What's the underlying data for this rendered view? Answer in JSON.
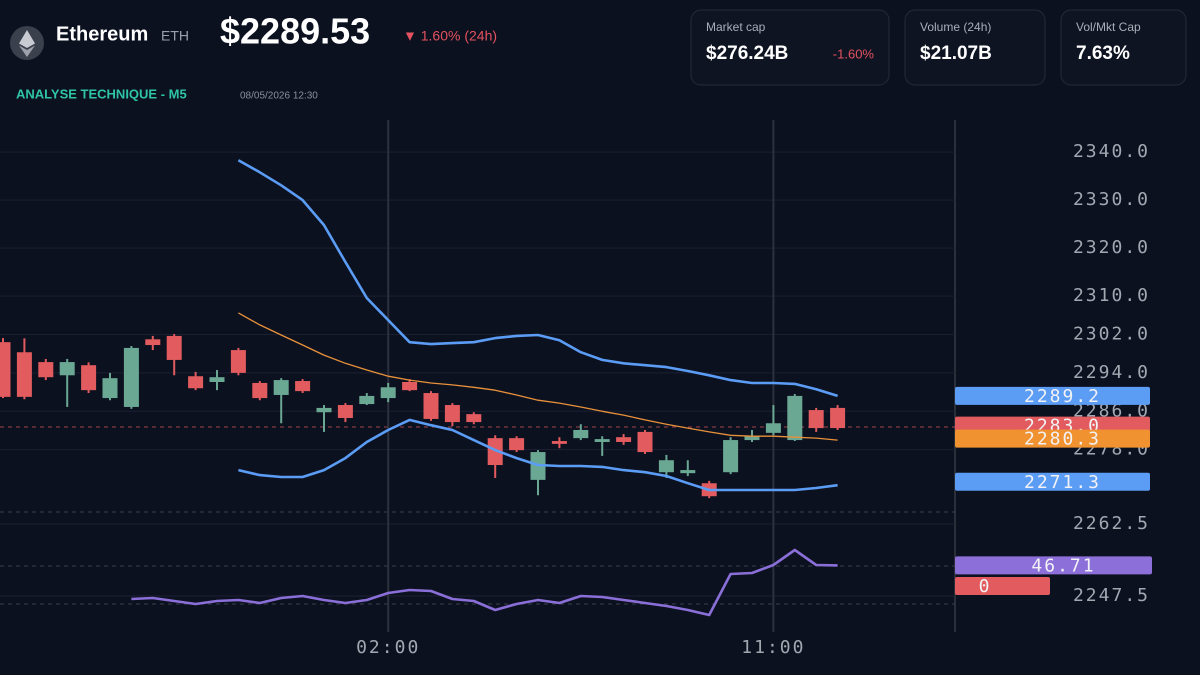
{
  "header": {
    "name": "Ethereum",
    "symbol": "ETH",
    "price": "$2289.53",
    "change": "▼ 1.60% (24h)",
    "section": "ANALYSE TECHNIQUE - M5",
    "timestamp": "08/05/2026 12:30"
  },
  "stats": [
    {
      "label": "Market cap",
      "value": "$276.24B",
      "change": "-1.60%"
    },
    {
      "label": "Volume (24h)",
      "value": "$21.07B"
    },
    {
      "label": "Vol/Mkt Cap",
      "value": "7.63%"
    }
  ],
  "chart_data": {
    "type": "candlestick",
    "categories": [
      null,
      null,
      null,
      null,
      null,
      null,
      null,
      null,
      null,
      null,
      null,
      null,
      null,
      null,
      null,
      null,
      null,
      null,
      "02:00",
      null,
      null,
      null,
      null,
      null,
      null,
      null,
      null,
      null,
      null,
      null,
      null,
      null,
      null,
      null,
      null,
      null,
      "11:00",
      null,
      null,
      null
    ],
    "open": [
      2300.4,
      2298.3,
      2296.25,
      2293.5,
      2295.6,
      2288.75,
      2286.9,
      2301.0,
      2301.7,
      2293.3,
      2292.1,
      2298.75,
      2291.9,
      2289.4,
      2292.3,
      2285.8,
      2287.3,
      2287.5,
      2288.75,
      2292.1,
      2289.8,
      2287.3,
      2285.4,
      2280.4,
      2280.4,
      2271.7,
      2279.8,
      2280.4,
      2279.6,
      2280.6,
      2281.7,
      2273.3,
      2273.1,
      2271.0,
      2273.3,
      2280.0,
      2281.5,
      2280.0,
      2286.25,
      2286.7
    ],
    "high": [
      2301.25,
      2301.2,
      2296.9,
      2296.9,
      2296.2,
      2294.0,
      2299.6,
      2301.7,
      2302.1,
      2294.2,
      2294.6,
      2299.2,
      2292.3,
      2292.9,
      2292.7,
      2287.3,
      2287.7,
      2289.8,
      2291.9,
      2292.7,
      2290.2,
      2287.7,
      2285.8,
      2281.0,
      2280.8,
      2277.9,
      2280.6,
      2283.3,
      2280.8,
      2281.25,
      2282.1,
      2276.9,
      2275.8,
      2271.5,
      2280.6,
      2282.1,
      2287.3,
      2289.6,
      2286.7,
      2287.3
    ],
    "low": [
      2288.75,
      2288.5,
      2292.5,
      2286.9,
      2289.8,
      2288.3,
      2286.5,
      2298.75,
      2293.5,
      2290.4,
      2290.4,
      2293.5,
      2288.3,
      2283.5,
      2289.8,
      2281.7,
      2283.75,
      2287.3,
      2287.9,
      2290.2,
      2284.0,
      2282.9,
      2283.3,
      2272.1,
      2277.5,
      2268.5,
      2278.3,
      2280.0,
      2276.7,
      2279.0,
      2277.1,
      2272.1,
      2272.5,
      2267.9,
      2272.9,
      2279.6,
      2281.0,
      2279.8,
      2281.7,
      2282.1
    ],
    "close": [
      2289.0,
      2289.0,
      2293.1,
      2296.25,
      2290.4,
      2292.9,
      2299.2,
      2299.8,
      2296.7,
      2290.8,
      2293.1,
      2294.0,
      2288.75,
      2292.5,
      2290.2,
      2286.7,
      2284.6,
      2289.2,
      2291.0,
      2290.4,
      2284.4,
      2283.75,
      2283.75,
      2274.8,
      2277.9,
      2277.5,
      2279.2,
      2282.1,
      2280.2,
      2279.6,
      2277.5,
      2275.8,
      2273.75,
      2268.3,
      2280.0,
      2280.8,
      2283.5,
      2289.2,
      2282.5,
      2282.5
    ],
    "up_color": "#6aa893",
    "down_color": "#e25b5e",
    "overlays": [
      {
        "color": "#5b9cf5",
        "values": [
          null,
          null,
          null,
          null,
          null,
          null,
          null,
          null,
          null,
          null,
          null,
          2338.3,
          2335.8,
          2333.1,
          2330.0,
          2324.8,
          2317.1,
          2309.6,
          2305.0,
          2300.4,
          2300.0,
          2300.2,
          2300.4,
          2301.25,
          2301.7,
          2301.9,
          2300.8,
          2298.3,
          2296.7,
          2296.0,
          2295.6,
          2295.2,
          2294.4,
          2293.5,
          2292.5,
          2291.9,
          2291.9,
          2291.7,
          2290.6,
          2289.2
        ]
      },
      {
        "color": "#e8913a",
        "values": [
          null,
          null,
          null,
          null,
          null,
          null,
          null,
          null,
          null,
          null,
          null,
          2306.5,
          2304.0,
          2301.9,
          2299.8,
          2297.7,
          2296.0,
          2294.6,
          2293.3,
          2292.5,
          2291.9,
          2291.5,
          2291.0,
          2290.4,
          2289.4,
          2288.3,
          2287.7,
          2286.9,
          2286.0,
          2285.2,
          2284.2,
          2283.3,
          2282.5,
          2281.7,
          2281.0,
          2280.8,
          2280.8,
          2280.6,
          2280.4,
          2280.0
        ]
      },
      {
        "color": "#5b9cf5",
        "values": [
          null,
          null,
          null,
          null,
          null,
          null,
          null,
          null,
          null,
          null,
          null,
          2273.75,
          2272.7,
          2272.3,
          2272.3,
          2273.75,
          2276.25,
          2279.6,
          2282.1,
          2284.2,
          2283.1,
          2282.1,
          2280.0,
          2277.9,
          2276.25,
          2274.8,
          2274.6,
          2274.6,
          2274.4,
          2273.75,
          2273.3,
          2272.5,
          2271.0,
          2269.6,
          2269.6,
          2269.6,
          2269.6,
          2269.6,
          2270.0,
          2270.6
        ]
      }
    ],
    "rsi": {
      "color": "#8b6fd8",
      "ylim": [
        25,
        55
      ],
      "values": [
        null,
        null,
        null,
        null,
        null,
        null,
        35.76,
        36.09,
        35.11,
        34.13,
        35.11,
        35.43,
        34.46,
        36.09,
        36.74,
        35.43,
        34.46,
        35.43,
        37.72,
        38.7,
        38.37,
        35.76,
        35.11,
        32.17,
        34.13,
        35.43,
        34.46,
        36.74,
        36.41,
        35.43,
        34.46,
        33.48,
        32.17,
        30.54,
        43.91,
        44.24,
        46.85,
        51.74,
        46.85,
        46.71
      ]
    },
    "ylim": [
      2240,
      2346.7
    ],
    "yticks": [
      {
        "value": 2340,
        "label": "2340.0"
      },
      {
        "value": 2330,
        "label": "2330.0"
      },
      {
        "value": 2320,
        "label": "2320.0"
      },
      {
        "value": 2310,
        "label": "2310.0"
      },
      {
        "value": 2302,
        "label": "2302.0"
      },
      {
        "value": 2294,
        "label": "2294.0"
      },
      {
        "value": 2286,
        "label": "2286.0"
      },
      {
        "value": 2278,
        "label": "2278.0"
      },
      {
        "value": 2262.5,
        "label": "2262.5"
      },
      {
        "value": 2247.5,
        "label": "2247.5"
      }
    ],
    "grid": true,
    "price_tags": [
      {
        "value": 2289.2,
        "color": "#5b9cf5"
      },
      {
        "value": 2283,
        "label": "2283.0",
        "color": "#e25b5e"
      },
      {
        "value": 2280.3,
        "color": "#f0922f"
      },
      {
        "value": 2271.3,
        "color": "#5b9cf5"
      }
    ],
    "rsi_tag": {
      "value": 46.71,
      "color": "#8d6fd9"
    },
    "zero_tag": {
      "label": "0",
      "color": "#e25b5e"
    }
  }
}
